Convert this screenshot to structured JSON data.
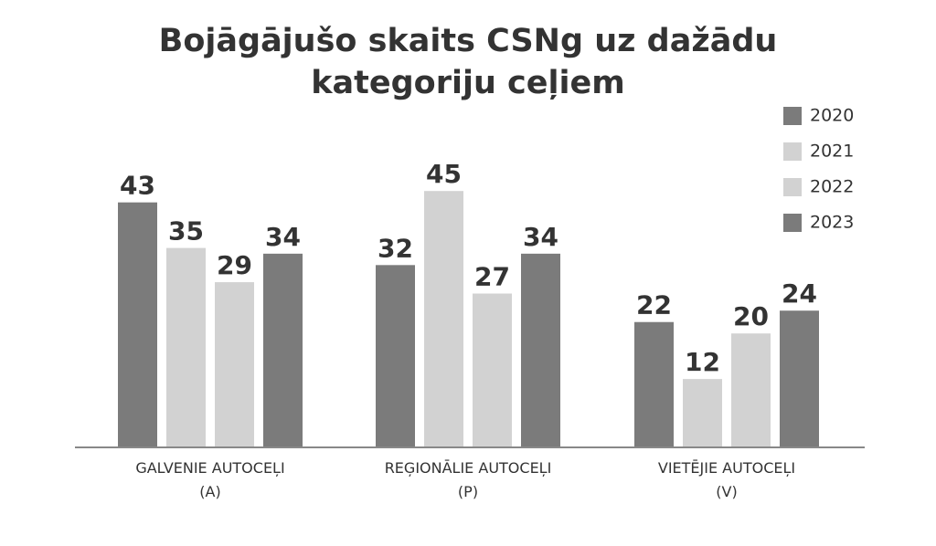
{
  "chart_data": {
    "type": "bar",
    "title": "Bojāgājušo skaits CSNg uz dažādu\nkategoriju ceļiem",
    "categories": [
      "GALVENIE AUTOCEĻI\n(A)",
      "REĢIONĀLIE AUTOCEĻI\n(P)",
      "VIETĒJIE AUTOCEĻI\n(V)"
    ],
    "series": [
      {
        "name": "2020",
        "color": "#7b7b7b",
        "values": [
          43,
          32,
          22
        ]
      },
      {
        "name": "2021",
        "color": "#d2d2d2",
        "values": [
          35,
          45,
          12
        ]
      },
      {
        "name": "2022",
        "color": "#d2d2d2",
        "values": [
          29,
          27,
          20
        ]
      },
      {
        "name": "2023",
        "color": "#7b7b7b",
        "values": [
          34,
          34,
          24
        ]
      }
    ],
    "legend": "top-right"
  }
}
